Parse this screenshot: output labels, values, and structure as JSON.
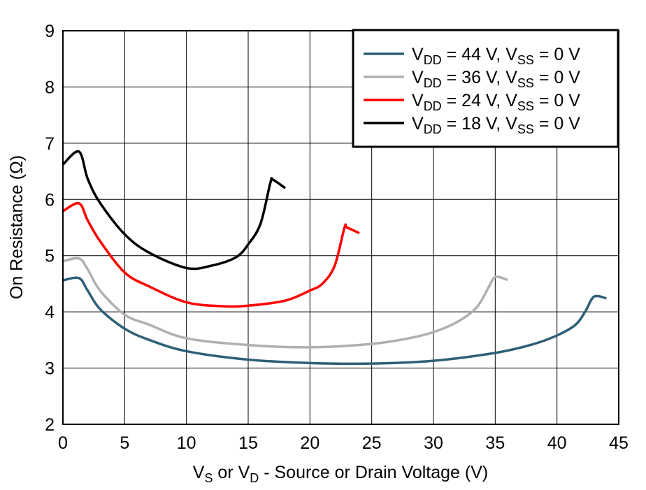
{
  "chart_data": {
    "type": "line",
    "title": "",
    "xlabel_parts": [
      "V",
      "S",
      " or V",
      "D",
      " - Source or Drain Voltage (V)"
    ],
    "ylabel": "On Resistance (Ω)",
    "xlim": [
      0,
      45
    ],
    "ylim": [
      2,
      9
    ],
    "xticks": [
      "0",
      "5",
      "10",
      "15",
      "20",
      "25",
      "30",
      "35",
      "40",
      "45"
    ],
    "yticks": [
      "2",
      "3",
      "4",
      "5",
      "6",
      "7",
      "8",
      "9"
    ],
    "grid": true,
    "legend_position": "top-right",
    "series": [
      {
        "name_parts": [
          "V",
          "DD",
          " = 44 V, V",
          "SS",
          " = 0 V"
        ],
        "color": "#2e5f78",
        "x": [
          0,
          1.3,
          2,
          3,
          5,
          7,
          10,
          15,
          20,
          25,
          30,
          35,
          38,
          40,
          41.5,
          42.3,
          43,
          44
        ],
        "y": [
          4.56,
          4.6,
          4.38,
          4.05,
          3.7,
          3.5,
          3.3,
          3.15,
          3.09,
          3.08,
          3.13,
          3.27,
          3.42,
          3.58,
          3.77,
          4.01,
          4.27,
          4.24
        ]
      },
      {
        "name_parts": [
          "V",
          "DD",
          " = 36 V, V",
          "SS",
          " = 0 V"
        ],
        "color": "#b0b0b0",
        "x": [
          0,
          1.3,
          2,
          3,
          5,
          7,
          10,
          15,
          20,
          25,
          28,
          30,
          32,
          33.5,
          34.5,
          35,
          36
        ],
        "y": [
          4.9,
          4.95,
          4.76,
          4.38,
          3.95,
          3.77,
          3.53,
          3.41,
          3.37,
          3.43,
          3.53,
          3.64,
          3.83,
          4.08,
          4.45,
          4.62,
          4.57
        ]
      },
      {
        "name_parts": [
          "V",
          "DD",
          " = 24 V, V",
          "SS",
          " = 0 V"
        ],
        "color": "#ff0000",
        "x": [
          0,
          1.3,
          2,
          3,
          5,
          7,
          10,
          13,
          15,
          18,
          20,
          21,
          22,
          22.8,
          23,
          24
        ],
        "y": [
          5.79,
          5.93,
          5.63,
          5.26,
          4.7,
          4.45,
          4.17,
          4.1,
          4.11,
          4.2,
          4.38,
          4.5,
          4.82,
          5.5,
          5.5,
          5.4
        ]
      },
      {
        "name_parts": [
          "V",
          "DD",
          " = 18 V, V",
          "SS",
          " = 0 V"
        ],
        "color": "#000000",
        "x": [
          0,
          1.3,
          2,
          3,
          5,
          7,
          10,
          12,
          14,
          15,
          16,
          16.8,
          17,
          18
        ],
        "y": [
          6.62,
          6.85,
          6.37,
          5.94,
          5.38,
          5.05,
          4.78,
          4.82,
          4.97,
          5.2,
          5.57,
          6.3,
          6.35,
          6.2
        ]
      }
    ]
  }
}
